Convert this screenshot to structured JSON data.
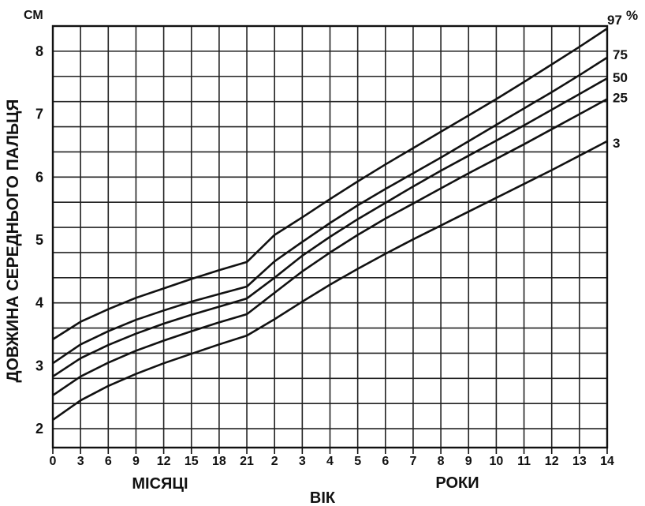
{
  "chart_data": {
    "type": "line",
    "ylabel": "ДОВЖИНА СЕРЕДНЬОГО ПАЛЬЦЯ",
    "yunit": "СМ",
    "xlabel": "ВІК",
    "x_section_labels": [
      "МІСЯЦІ",
      "РОКИ"
    ],
    "percent_sign": "%",
    "x_ticks": [
      "0",
      "3",
      "6",
      "9",
      "12",
      "15",
      "18",
      "21",
      "2",
      "3",
      "4",
      "5",
      "6",
      "7",
      "8",
      "9",
      "10",
      "11",
      "12",
      "13",
      "14"
    ],
    "y_ticks": [
      "2",
      "3",
      "4",
      "5",
      "6",
      "7",
      "8"
    ],
    "ylim": [
      1.7,
      8.4
    ],
    "grid": true,
    "series": [
      {
        "name": "97",
        "values": [
          3.42,
          3.7,
          3.9,
          4.08,
          4.23,
          4.38,
          4.52,
          4.65,
          5.08,
          5.36,
          5.65,
          5.93,
          6.2,
          6.46,
          6.72,
          6.98,
          7.24,
          7.51,
          7.79,
          8.07,
          8.36
        ]
      },
      {
        "name": "75",
        "values": [
          3.04,
          3.34,
          3.55,
          3.73,
          3.88,
          4.02,
          4.14,
          4.26,
          4.66,
          4.97,
          5.27,
          5.55,
          5.81,
          6.06,
          6.31,
          6.57,
          6.83,
          7.09,
          7.35,
          7.62,
          7.9
        ]
      },
      {
        "name": "50",
        "values": [
          2.83,
          3.12,
          3.33,
          3.51,
          3.67,
          3.81,
          3.94,
          4.07,
          4.4,
          4.75,
          5.05,
          5.33,
          5.59,
          5.85,
          6.1,
          6.34,
          6.58,
          6.82,
          7.07,
          7.32,
          7.57
        ]
      },
      {
        "name": "25",
        "values": [
          2.53,
          2.83,
          3.05,
          3.24,
          3.4,
          3.55,
          3.69,
          3.82,
          4.16,
          4.5,
          4.8,
          5.08,
          5.34,
          5.58,
          5.82,
          6.06,
          6.29,
          6.52,
          6.76,
          7.0,
          7.24
        ]
      },
      {
        "name": "3",
        "values": [
          2.14,
          2.45,
          2.68,
          2.87,
          3.04,
          3.19,
          3.34,
          3.48,
          3.74,
          4.02,
          4.29,
          4.54,
          4.78,
          5.01,
          5.23,
          5.45,
          5.67,
          5.89,
          6.11,
          6.34,
          6.57
        ]
      }
    ]
  }
}
